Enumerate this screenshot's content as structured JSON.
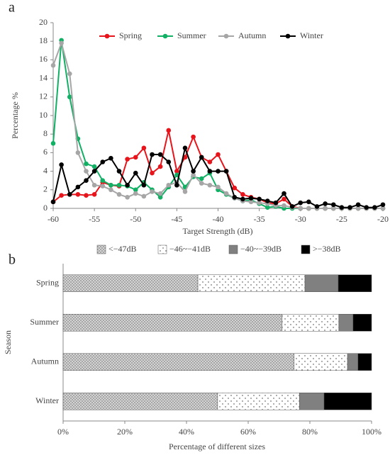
{
  "chart_data": [
    {
      "type": "line",
      "panel_label": "a",
      "x_label": "Target Strength (dB)",
      "y_label": "Percentage %",
      "x": [
        -60,
        -59,
        -58,
        -57,
        -56,
        -55,
        -54,
        -53,
        -52,
        -51,
        -50,
        -49,
        -48,
        -47,
        -46,
        -45,
        -44,
        -43,
        -42,
        -41,
        -40,
        -39,
        -38,
        -37,
        -36,
        -35,
        -34,
        -33,
        -32,
        -31,
        -30,
        -29,
        -28,
        -27,
        -26,
        -25,
        -24,
        -23,
        -22,
        -21,
        -20
      ],
      "xlim": [
        -60,
        -20
      ],
      "xticks": [
        -60,
        -55,
        -50,
        -45,
        -40,
        -35,
        -30,
        -25,
        -20
      ],
      "ylim": [
        0,
        20
      ],
      "yticks": [
        0,
        2,
        4,
        6,
        8,
        10,
        12,
        14,
        16,
        18,
        20
      ],
      "series": [
        {
          "name": "Spring",
          "color": "#e8141b",
          "values": [
            0.7,
            1.4,
            1.5,
            1.5,
            1.4,
            1.5,
            2.8,
            2.5,
            2.4,
            5.3,
            5.5,
            6.5,
            3.8,
            4.5,
            8.4,
            4.0,
            5.5,
            7.7,
            5.5,
            5.0,
            5.8,
            4.0,
            2.2,
            1.5,
            1.2,
            1.0,
            0.6,
            0.5,
            1.0,
            0.2,
            0,
            0,
            0,
            0,
            0,
            0,
            0,
            0,
            0,
            0,
            0
          ]
        },
        {
          "name": "Summer",
          "color": "#11b064",
          "values": [
            7.0,
            18.1,
            12.0,
            7.5,
            4.8,
            4.5,
            3.0,
            2.5,
            2.5,
            2.4,
            2.0,
            2.8,
            2.0,
            1.2,
            2.3,
            3.6,
            2.3,
            3.4,
            3.2,
            3.8,
            2.0,
            1.5,
            1.1,
            0.8,
            0.9,
            0.5,
            0.1,
            0.2,
            0,
            0,
            0,
            0,
            0,
            0,
            0,
            0,
            0,
            0,
            0,
            0,
            0
          ]
        },
        {
          "name": "Autumn",
          "color": "#a6a6a6",
          "values": [
            15.4,
            17.8,
            14.5,
            6.0,
            4.0,
            2.5,
            2.4,
            2.0,
            1.5,
            1.2,
            1.6,
            1.3,
            1.8,
            1.6,
            2.5,
            2.8,
            1.8,
            3.6,
            2.7,
            2.5,
            2.3,
            1.6,
            1.1,
            0.8,
            0.7,
            0.6,
            0.5,
            0.3,
            0.3,
            0.1,
            0,
            0,
            0,
            0,
            0,
            0,
            0,
            0,
            0,
            0,
            0
          ]
        },
        {
          "name": "Winter",
          "color": "#000000",
          "values": [
            0.7,
            4.7,
            1.5,
            2.3,
            3.0,
            4.0,
            5.0,
            5.4,
            4.0,
            2.5,
            3.8,
            2.5,
            5.8,
            5.8,
            5.0,
            2.5,
            6.5,
            4.0,
            5.5,
            4.0,
            4.0,
            4.0,
            1.2,
            1.0,
            1.1,
            1.0,
            0.8,
            0.6,
            1.6,
            0.2,
            0.6,
            0.7,
            0.2,
            0.5,
            0.4,
            0.1,
            0.1,
            0.4,
            0.1,
            0.1,
            0.4
          ]
        }
      ]
    },
    {
      "type": "stacked-bar-horizontal",
      "panel_label": "b",
      "x_label": "Percentage of different sizes",
      "y_label": "Season",
      "categories": [
        "Spring",
        "Summer",
        "Autumn",
        "Winter"
      ],
      "xlim": [
        0,
        100
      ],
      "xticks": [
        {
          "value": 0,
          "label": "0%"
        },
        {
          "value": 20,
          "label": "20%"
        },
        {
          "value": 40,
          "label": "40%"
        },
        {
          "value": 60,
          "label": "60%"
        },
        {
          "value": 80,
          "label": "80%"
        },
        {
          "value": 100,
          "label": "100%"
        }
      ],
      "series": [
        {
          "name": "<−47dB",
          "color": "#9a9a9a",
          "pattern": "crosshatch",
          "values": [
            43.7,
            71.0,
            74.9,
            50.1
          ]
        },
        {
          "name": "−46~−41dB",
          "color": "#ffffff",
          "pattern": "dots",
          "values": [
            34.7,
            18.4,
            17.3,
            26.5
          ]
        },
        {
          "name": "−40~−39dB",
          "color": "#808080",
          "pattern": "solid",
          "values": [
            10.8,
            4.6,
            3.4,
            8.0
          ]
        },
        {
          "name": ">−38dB",
          "color": "#000000",
          "pattern": "solid",
          "values": [
            10.8,
            6.0,
            4.4,
            15.4
          ]
        }
      ]
    }
  ]
}
